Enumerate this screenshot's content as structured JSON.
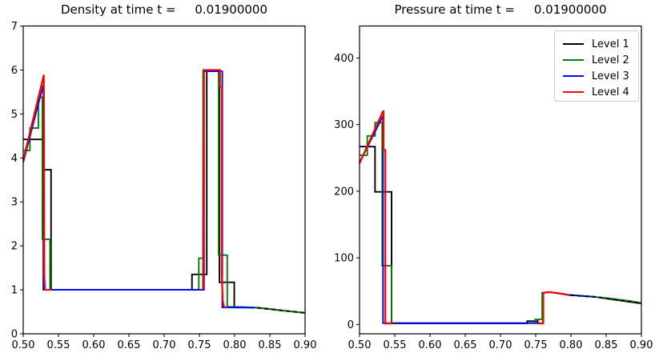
{
  "figure": {
    "background": "#ffffff"
  },
  "titles": {
    "density": "Density at time t =     0.01900000",
    "pressure": "Pressure at time t =     0.01900000"
  },
  "legend": {
    "position": "top-right",
    "entries": [
      {
        "label": "Level 1",
        "color": "#000000"
      },
      {
        "label": "Level 2",
        "color": "#008000"
      },
      {
        "label": "Level 3",
        "color": "#0000ff"
      },
      {
        "label": "Level 4",
        "color": "#ff0000"
      }
    ]
  },
  "chart_data": [
    {
      "type": "line",
      "title": "Density at time t =     0.01900000",
      "xlabel": "",
      "ylabel": "",
      "xlim": [
        0.5,
        0.9
      ],
      "ylim": [
        0,
        7
      ],
      "grid": false,
      "legend": false,
      "xticks": [
        0.5,
        0.55,
        0.6,
        0.65,
        0.7,
        0.75,
        0.8,
        0.85,
        0.9
      ],
      "xtick_labels": [
        "0.50",
        "0.55",
        "0.60",
        "0.65",
        "0.70",
        "0.75",
        "0.80",
        "0.85",
        "0.90"
      ],
      "yticks": [
        0,
        1,
        2,
        3,
        4,
        5,
        6,
        7
      ],
      "ytick_labels": [
        "0",
        "1",
        "2",
        "3",
        "4",
        "5",
        "6",
        "7"
      ],
      "series": [
        {
          "name": "Level 1",
          "color": "#000000",
          "width": 1.9,
          "points": [
            [
              0.5,
              4.42
            ],
            [
              0.529,
              4.42
            ],
            [
              0.529,
              3.73
            ],
            [
              0.5395,
              3.73
            ],
            [
              0.5395,
              1.0
            ],
            [
              0.7395,
              1.0
            ],
            [
              0.7395,
              1.35
            ],
            [
              0.7605,
              1.35
            ],
            [
              0.7605,
              5.98
            ],
            [
              0.7785,
              5.98
            ],
            [
              0.7785,
              1.17
            ],
            [
              0.7995,
              1.17
            ],
            [
              0.7995,
              0.61
            ],
            [
              0.828,
              0.6
            ],
            [
              0.845,
              0.575
            ],
            [
              0.86,
              0.545
            ],
            [
              0.875,
              0.515
            ],
            [
              0.9,
              0.475
            ]
          ]
        },
        {
          "name": "Level 2",
          "color": "#008000",
          "width": 1.9,
          "points": [
            [
              0.5,
              4.17
            ],
            [
              0.5095,
              4.17
            ],
            [
              0.5095,
              4.68
            ],
            [
              0.5215,
              4.68
            ],
            [
              0.5215,
              5.38
            ],
            [
              0.5273,
              5.38
            ],
            [
              0.5273,
              2.15
            ],
            [
              0.538,
              2.15
            ],
            [
              0.538,
              1.0
            ],
            [
              0.7492,
              1.0
            ],
            [
              0.7492,
              1.72
            ],
            [
              0.7552,
              1.72
            ],
            [
              0.7552,
              5.98
            ],
            [
              0.7773,
              5.98
            ],
            [
              0.7773,
              1.79
            ],
            [
              0.7895,
              1.79
            ],
            [
              0.7895,
              0.615
            ],
            [
              0.828,
              0.596
            ],
            [
              0.84,
              0.578
            ],
            [
              0.855,
              0.55
            ],
            [
              0.87,
              0.525
            ],
            [
              0.885,
              0.5
            ],
            [
              0.9,
              0.477
            ]
          ]
        },
        {
          "name": "Level 3",
          "color": "#0000ff",
          "width": 1.9,
          "points": [
            [
              0.5,
              3.9
            ],
            [
              0.5285,
              5.66
            ],
            [
              0.5285,
              1.0
            ],
            [
              0.7565,
              1.0
            ],
            [
              0.7565,
              5.97
            ],
            [
              0.7825,
              5.97
            ],
            [
              0.7825,
              0.6
            ],
            [
              0.828,
              0.592
            ]
          ]
        },
        {
          "name": "Level 4",
          "color": "#ff0000",
          "width": 2.2,
          "points": [
            [
              0.5,
              3.95
            ],
            [
              0.5292,
              5.89
            ],
            [
              0.5296,
              4.5
            ],
            [
              0.5299,
              1.3
            ],
            [
              0.531,
              1.0
            ],
            [
              0.54,
              1.0
            ]
          ]
        },
        {
          "name": "Level 4",
          "color": "#ff0000",
          "width": 2.2,
          "points": [
            [
              0.7545,
              1.0
            ],
            [
              0.7552,
              1.05
            ],
            [
              0.7558,
              6.0
            ],
            [
              0.7793,
              6.0
            ],
            [
              0.7793,
              5.62
            ],
            [
              0.7817,
              5.62
            ],
            [
              0.7817,
              1.4
            ],
            [
              0.783,
              0.75
            ],
            [
              0.785,
              0.615
            ],
            [
              0.787,
              0.59
            ]
          ]
        },
        {
          "name": "Level 1 dashes",
          "color": "#000000",
          "width": 1.9,
          "dash": "5,4",
          "points": [
            [
              0.832,
              0.59
            ],
            [
              0.9,
              0.477
            ]
          ]
        }
      ]
    },
    {
      "type": "line",
      "title": "Pressure at time t =     0.01900000",
      "xlabel": "",
      "ylabel": "",
      "xlim": [
        0.5,
        0.9
      ],
      "ylim": [
        -14,
        448
      ],
      "grid": false,
      "legend": true,
      "xticks": [
        0.5,
        0.55,
        0.6,
        0.65,
        0.7,
        0.75,
        0.8,
        0.85,
        0.9
      ],
      "xtick_labels": [
        "0.50",
        "0.55",
        "0.60",
        "0.65",
        "0.70",
        "0.75",
        "0.80",
        "0.85",
        "0.90"
      ],
      "yticks": [
        0,
        100,
        200,
        300,
        400
      ],
      "ytick_labels": [
        "0",
        "100",
        "200",
        "300",
        "400"
      ],
      "series": [
        {
          "name": "Level 1",
          "color": "#000000",
          "width": 1.9,
          "points": [
            [
              0.5,
              267
            ],
            [
              0.522,
              267
            ],
            [
              0.522,
              199
            ],
            [
              0.5455,
              199
            ],
            [
              0.5455,
              1.5
            ],
            [
              0.7379,
              1.5
            ],
            [
              0.7379,
              5.0
            ],
            [
              0.753,
              5.0
            ],
            [
              0.753,
              1.5
            ],
            [
              0.7606,
              1.5
            ],
            [
              0.7606,
              47.5
            ],
            [
              0.77,
              48.5
            ],
            [
              0.79,
              45.5
            ],
            [
              0.7966,
              44.3
            ],
            [
              0.8345,
              41.3
            ],
            [
              0.9,
              31.5
            ]
          ]
        },
        {
          "name": "Level 2",
          "color": "#008000",
          "width": 1.9,
          "points": [
            [
              0.5,
              254
            ],
            [
              0.511,
              254
            ],
            [
              0.511,
              283
            ],
            [
              0.522,
              283
            ],
            [
              0.522,
              303
            ],
            [
              0.5322,
              303
            ],
            [
              0.5322,
              88
            ],
            [
              0.5455,
              88
            ],
            [
              0.5455,
              2.0
            ],
            [
              0.7492,
              2.0
            ],
            [
              0.7492,
              7.5
            ],
            [
              0.7592,
              7.5
            ],
            [
              0.7592,
              47.5
            ],
            [
              0.77,
              48.5
            ],
            [
              0.79,
              45.5
            ],
            [
              0.7966,
              44.3
            ],
            [
              0.8345,
              41.3
            ],
            [
              0.848,
              40.0
            ],
            [
              0.86,
              38.5
            ],
            [
              0.872,
              36.9
            ],
            [
              0.885,
              35.0
            ],
            [
              0.9,
              32.3
            ]
          ]
        },
        {
          "name": "Level 3",
          "color": "#0000ff",
          "width": 1.9,
          "points": [
            [
              0.5,
              243
            ],
            [
              0.5333,
              313
            ],
            [
              0.5333,
              2.0
            ],
            [
              0.7606,
              2.0
            ],
            [
              0.7606,
              47.5
            ],
            [
              0.77,
              48.5
            ],
            [
              0.79,
              45.5
            ],
            [
              0.7966,
              44.3
            ],
            [
              0.8345,
              41.5
            ]
          ]
        },
        {
          "name": "Level 4",
          "color": "#ff0000",
          "width": 2.2,
          "points": [
            [
              0.5,
              242
            ],
            [
              0.5333,
              320
            ],
            [
              0.5341,
              320
            ],
            [
              0.5341,
              262
            ],
            [
              0.5366,
              262
            ],
            [
              0.5366,
              1.5
            ],
            [
              0.547,
              1.5
            ]
          ]
        },
        {
          "name": "Level 4",
          "color": "#ff0000",
          "width": 2.2,
          "points": [
            [
              0.753,
              1.5
            ],
            [
              0.7606,
              1.5
            ],
            [
              0.7606,
              47.5
            ],
            [
              0.768,
              48.6
            ],
            [
              0.78,
              47.3
            ],
            [
              0.7966,
              44.3
            ]
          ]
        },
        {
          "name": "Level 1 dashes",
          "color": "#000000",
          "width": 1.9,
          "dash": "5,4",
          "points": [
            [
              0.799,
              43.8
            ],
            [
              0.8345,
              41.3
            ],
            [
              0.9,
              31.8
            ]
          ]
        }
      ]
    }
  ]
}
